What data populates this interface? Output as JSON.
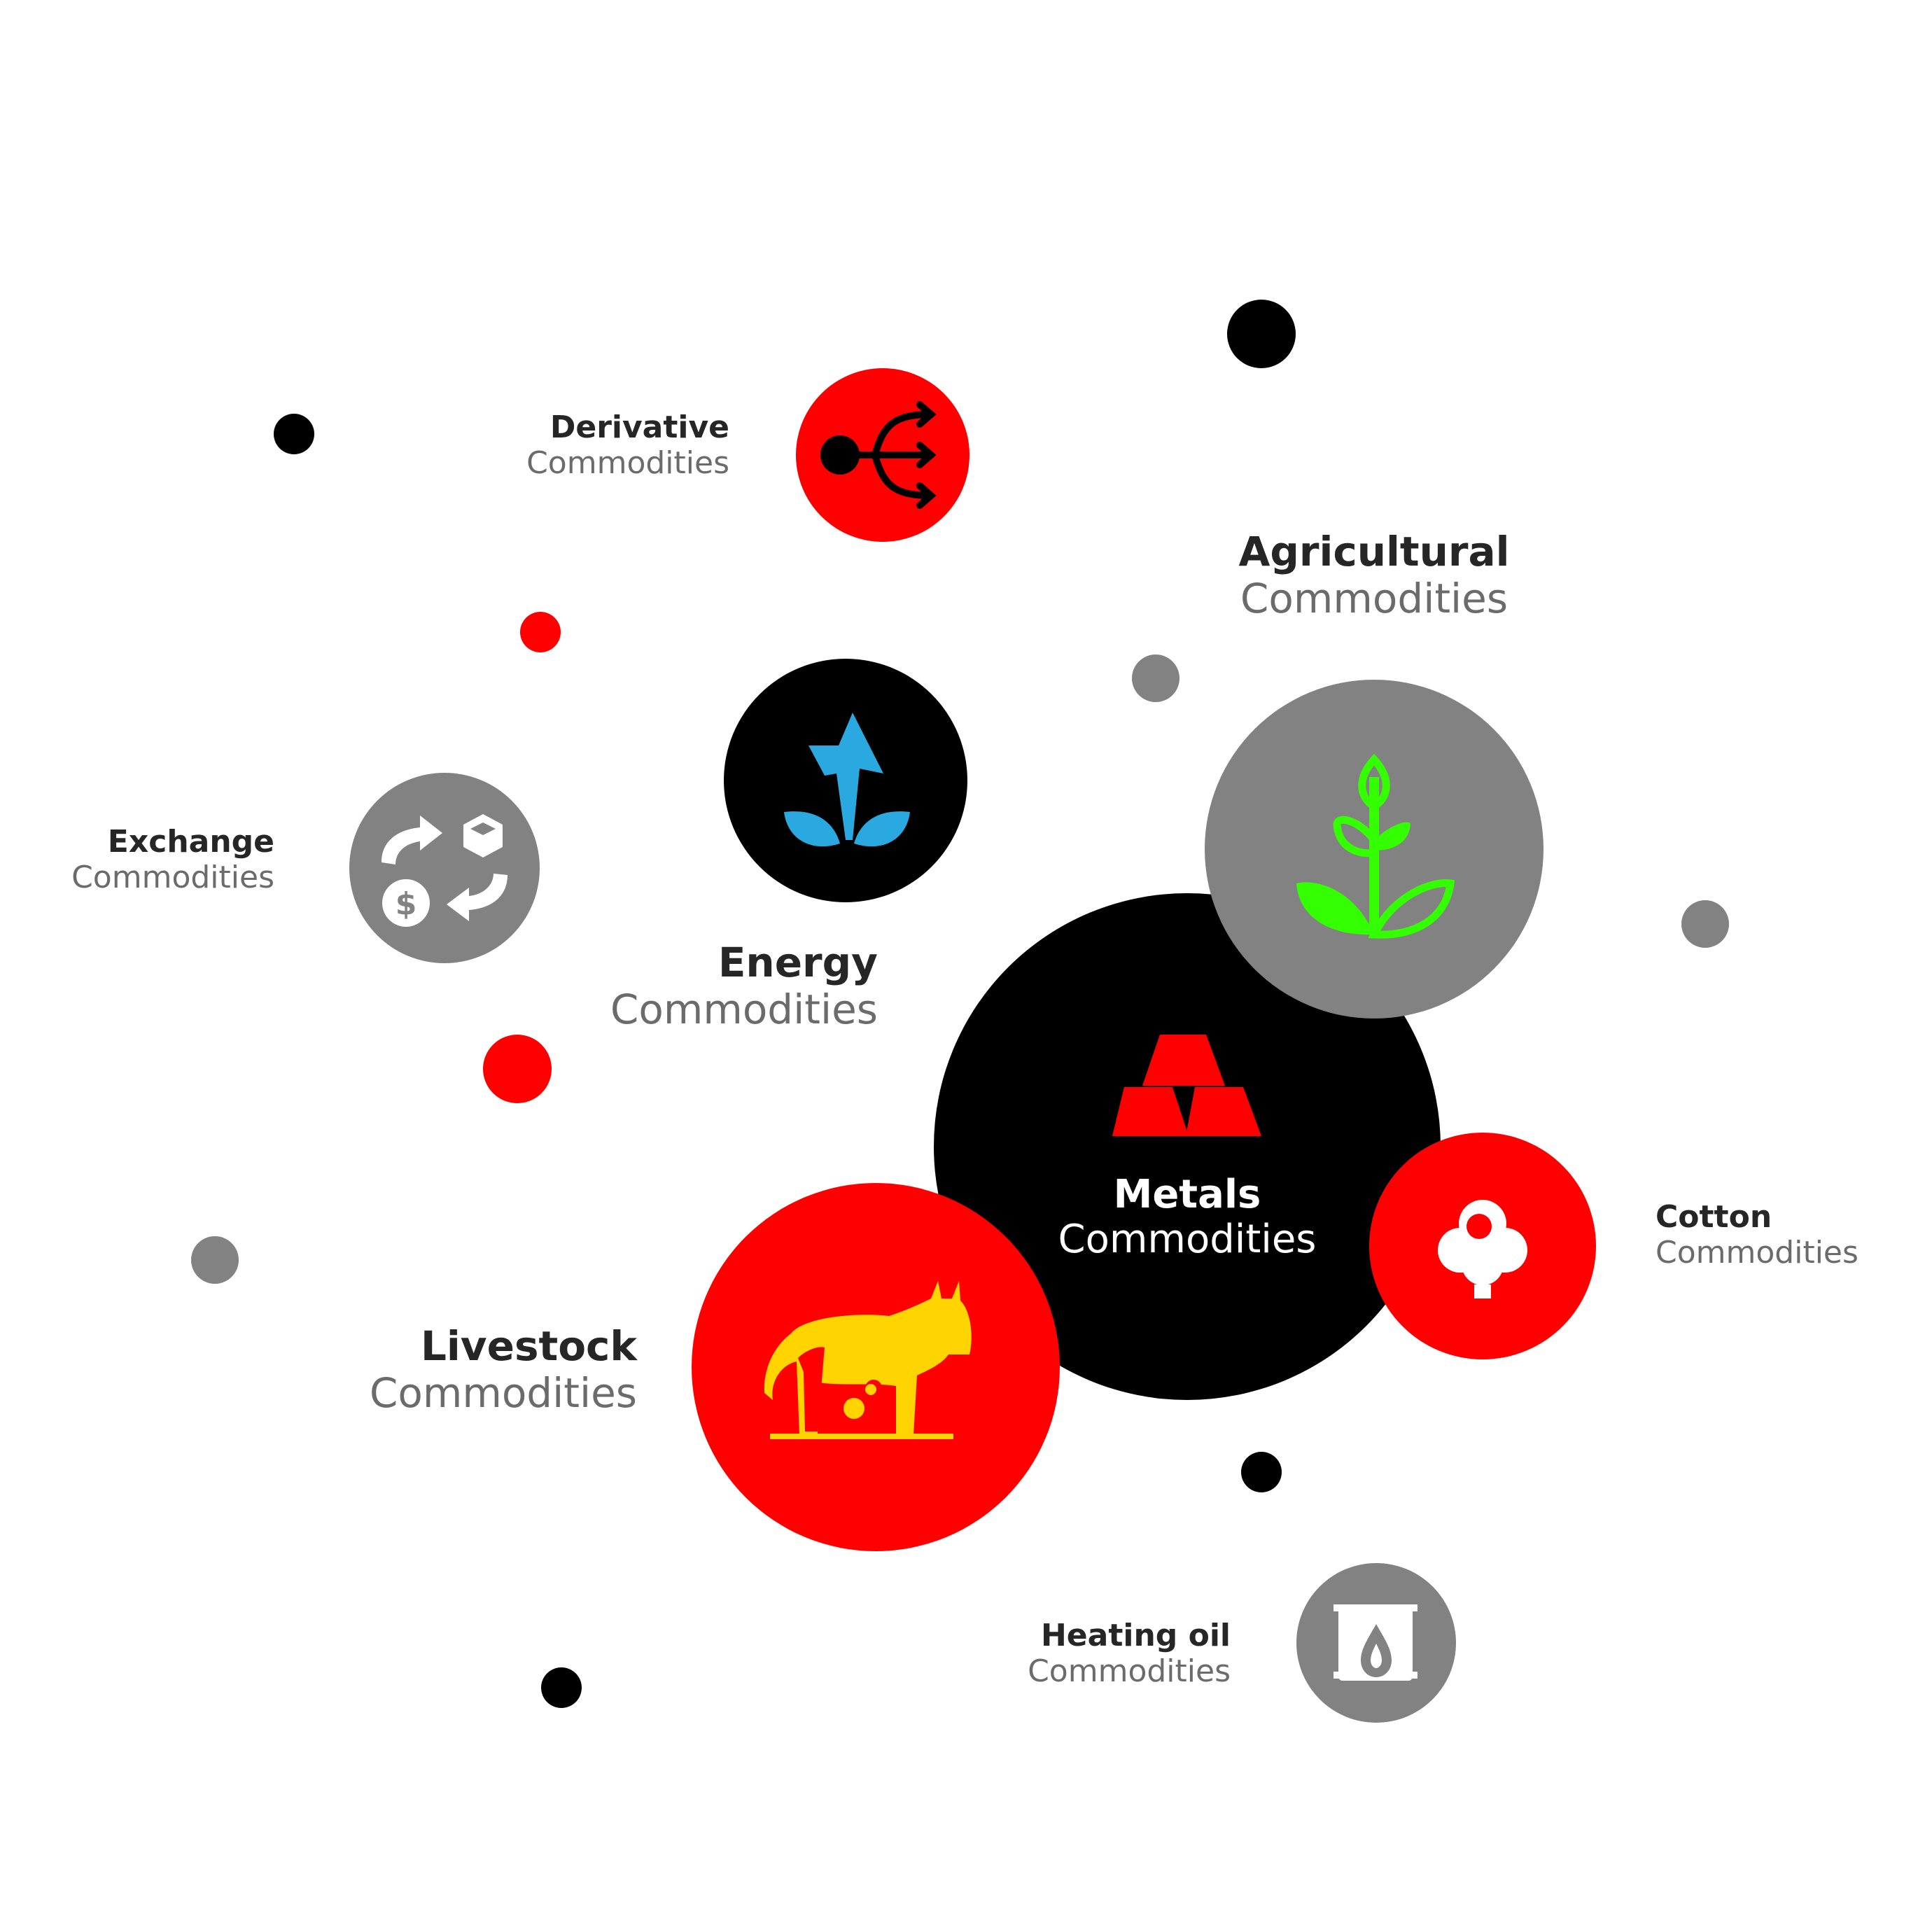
{
  "colors": {
    "red": "#ff0000",
    "black": "#000000",
    "gray": "#828282",
    "energy_blue": "#29a9e0",
    "leaf_green": "#33ff00",
    "livestock_yellow": "#ffd400",
    "white": "#ffffff"
  },
  "nodes": {
    "derivative": {
      "title": "Derivative",
      "subtitle": "Commodities",
      "icon": "split-arrows-icon"
    },
    "agricultural": {
      "title": "Agricultural",
      "subtitle": "Commodities",
      "icon": "plant-icon"
    },
    "energy": {
      "title": "Energy",
      "subtitle": "Commodities",
      "icon": "lightning-leaf-icon"
    },
    "exchange": {
      "title": "Exchange",
      "subtitle": "Commodities",
      "icon": "exchange-cycle-icon"
    },
    "metals": {
      "title": "Metals",
      "subtitle": "Commodities",
      "icon": "gold-bars-icon"
    },
    "cotton": {
      "title": "Cotton",
      "subtitle": "Commodities",
      "icon": "cotton-icon"
    },
    "livestock": {
      "title": "Livestock",
      "subtitle": "Commodities",
      "icon": "livestock-icon"
    },
    "heating_oil": {
      "title": "Heating oil",
      "subtitle": "Commodities",
      "icon": "oil-barrel-icon"
    }
  }
}
